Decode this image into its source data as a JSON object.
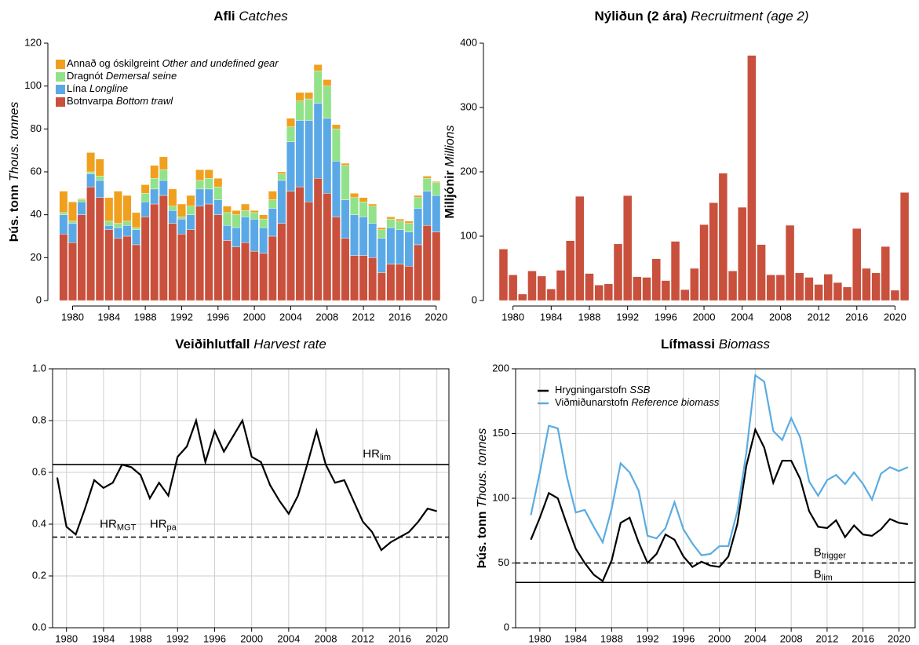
{
  "chart_data": [
    {
      "type": "bar",
      "stacked": true,
      "title": "Afli",
      "title_en": "Catches",
      "ylabel": "Þús. tonn",
      "ylabel_en": "Thous. tonnes",
      "x": [
        1979,
        1980,
        1981,
        1982,
        1983,
        1984,
        1985,
        1986,
        1987,
        1988,
        1989,
        1990,
        1991,
        1992,
        1993,
        1994,
        1995,
        1996,
        1997,
        1998,
        1999,
        2000,
        2001,
        2002,
        2003,
        2004,
        2005,
        2006,
        2007,
        2008,
        2009,
        2010,
        2011,
        2012,
        2013,
        2014,
        2015,
        2016,
        2017,
        2018,
        2019,
        2020
      ],
      "xlim": [
        1977.8,
        2021.4
      ],
      "xticks": [
        1980,
        1984,
        1988,
        1992,
        1996,
        2000,
        2004,
        2008,
        2012,
        2016,
        2020
      ],
      "ylim": [
        0,
        120
      ],
      "yticks": [
        0,
        20,
        40,
        60,
        80,
        100,
        120
      ],
      "grid": false,
      "legend": "top-left",
      "series": [
        {
          "name": "Annað og óskilgreint",
          "name_en": "Other and undefined gear",
          "color": "#f0a01e",
          "values": [
            10,
            9,
            0.5,
            9,
            8,
            11,
            15,
            12,
            7,
            4,
            6,
            6,
            8,
            6,
            5,
            5,
            4,
            4,
            3,
            2,
            3,
            1,
            2,
            4,
            1,
            4,
            4,
            3,
            3,
            3,
            2,
            1,
            2,
            2,
            1,
            1,
            1,
            1,
            1,
            1,
            1,
            0.5
          ]
        },
        {
          "name": "Dragnót",
          "name_en": "Demersal seine",
          "color": "#92e28a",
          "values": [
            1,
            1,
            1,
            1,
            2,
            2,
            2,
            2,
            1,
            4,
            5,
            5,
            2,
            1,
            4,
            4,
            5,
            6,
            6,
            6,
            3,
            3,
            4,
            4,
            3,
            7,
            9,
            10,
            15,
            15,
            15,
            16,
            8,
            7,
            8,
            4,
            4,
            4,
            4,
            5,
            6,
            6
          ]
        },
        {
          "name": "Lína",
          "name_en": "Longline",
          "color": "#5aa9e6",
          "values": [
            9,
            9,
            6,
            6,
            8,
            2,
            5,
            5,
            7,
            7,
            7,
            7,
            6,
            7,
            7,
            8,
            7,
            7,
            7,
            9,
            12,
            15,
            12,
            13,
            20,
            23,
            31,
            38,
            35,
            35,
            26,
            18,
            19,
            18,
            16,
            16,
            17,
            16,
            16,
            17,
            16,
            17
          ]
        },
        {
          "name": "Botnvarpa",
          "name_en": "Bottom trawl",
          "color": "#c9503c",
          "values": [
            31,
            27,
            40,
            53,
            48,
            33,
            29,
            30,
            26,
            39,
            45,
            49,
            36,
            31,
            33,
            44,
            45,
            40,
            28,
            25,
            27,
            23,
            22,
            30,
            36,
            51,
            53,
            46,
            57,
            50,
            39,
            29,
            21,
            21,
            20,
            13,
            17,
            17,
            16,
            26,
            35,
            32
          ]
        }
      ]
    },
    {
      "type": "bar",
      "title": "Nýliðun (2 ára)",
      "title_en": "Recruitment (age 2)",
      "ylabel": "Milljónir",
      "ylabel_en": "Millions",
      "color": "#c9503c",
      "x": [
        1979,
        1980,
        1981,
        1982,
        1983,
        1984,
        1985,
        1986,
        1987,
        1988,
        1989,
        1990,
        1991,
        1992,
        1993,
        1994,
        1995,
        1996,
        1997,
        1998,
        1999,
        2000,
        2001,
        2002,
        2003,
        2004,
        2005,
        2006,
        2007,
        2008,
        2009,
        2010,
        2011,
        2012,
        2013,
        2014,
        2015,
        2016,
        2017,
        2018,
        2019,
        2020,
        2021
      ],
      "values": [
        80,
        40,
        10,
        46,
        38,
        18,
        47,
        93,
        162,
        42,
        24,
        26,
        88,
        163,
        37,
        36,
        65,
        31,
        92,
        17,
        50,
        118,
        152,
        198,
        46,
        145,
        381,
        87,
        40,
        40,
        117,
        43,
        36,
        25,
        41,
        28,
        21,
        112,
        50,
        43,
        84,
        16,
        168
      ],
      "xlim": [
        1977.4,
        2022.1
      ],
      "xticks": [
        1980,
        1984,
        1988,
        1992,
        1996,
        2000,
        2004,
        2008,
        2012,
        2016,
        2020
      ],
      "ylim": [
        0,
        400
      ],
      "yticks": [
        0,
        100,
        200,
        300,
        400
      ],
      "grid": false
    },
    {
      "type": "line",
      "title": "Veiðihlutfall",
      "title_en": "Harvest rate",
      "x": [
        1979,
        1980,
        1981,
        1982,
        1983,
        1984,
        1985,
        1986,
        1987,
        1988,
        1989,
        1990,
        1991,
        1992,
        1993,
        1994,
        1995,
        1996,
        1997,
        1998,
        1999,
        2000,
        2001,
        2002,
        2003,
        2004,
        2005,
        2006,
        2007,
        2008,
        2009,
        2010,
        2011,
        2012,
        2013,
        2014,
        2015,
        2016,
        2017,
        2018,
        2019,
        2020
      ],
      "series": [
        {
          "color": "#000000",
          "values": [
            0.58,
            0.39,
            0.36,
            0.46,
            0.57,
            0.54,
            0.56,
            0.63,
            0.62,
            0.59,
            0.5,
            0.56,
            0.51,
            0.66,
            0.7,
            0.8,
            0.64,
            0.76,
            0.68,
            0.74,
            0.8,
            0.66,
            0.64,
            0.55,
            0.49,
            0.44,
            0.51,
            0.63,
            0.76,
            0.63,
            0.56,
            0.57,
            0.49,
            0.41,
            0.37,
            0.3,
            0.33,
            0.35,
            0.37,
            0.41,
            0.46,
            0.45
          ]
        }
      ],
      "hlines": [
        {
          "value": 0.63,
          "dashed": false,
          "labels": [
            {
              "text": "HR",
              "sub": "lim"
            }
          ]
        },
        {
          "value": 0.35,
          "dashed": true,
          "labels": [
            {
              "text": "HR",
              "sub": "MGT"
            },
            {
              "text": "HR",
              "sub": "pa"
            }
          ]
        }
      ],
      "xlim": [
        1978.5,
        2021.3
      ],
      "xticks": [
        1980,
        1984,
        1988,
        1992,
        1996,
        2000,
        2004,
        2008,
        2012,
        2016,
        2020
      ],
      "ylim": [
        0,
        1
      ],
      "yticks": [
        {
          "value": 0,
          "label": "0.0"
        },
        0.2,
        0.4,
        0.6,
        0.8,
        {
          "value": 1,
          "label": "1.0"
        }
      ],
      "grid": true
    },
    {
      "type": "line",
      "title": "Lífmassi",
      "title_en": "Biomass",
      "ylabel": "Þús. tonn",
      "ylabel_en": "Thous. tonnes",
      "legend": "top-left",
      "x": [
        1979,
        1980,
        1981,
        1982,
        1983,
        1984,
        1985,
        1986,
        1987,
        1988,
        1989,
        1990,
        1991,
        1992,
        1993,
        1994,
        1995,
        1996,
        1997,
        1998,
        1999,
        2000,
        2001,
        2002,
        2003,
        2004,
        2005,
        2006,
        2007,
        2008,
        2009,
        2010,
        2011,
        2012,
        2013,
        2014,
        2015,
        2016,
        2017,
        2018,
        2019,
        2020,
        2021
      ],
      "series": [
        {
          "name": "Hrygningarstofn",
          "name_en": "SSB",
          "color": "#000000",
          "values": [
            68,
            85,
            104,
            100,
            80,
            61,
            50,
            41,
            36,
            52,
            81,
            85,
            66,
            50,
            57,
            72,
            68,
            55,
            47,
            51,
            48,
            47,
            55,
            80,
            125,
            153,
            139,
            112,
            129,
            129,
            115,
            90,
            78,
            77,
            83,
            70,
            79,
            72,
            71,
            76,
            84,
            81,
            80
          ]
        },
        {
          "name": "Viðmiðunarstofn",
          "name_en": "Reference biomass",
          "color": "#5aabe2",
          "values": [
            87,
            120,
            156,
            154,
            117,
            89,
            91,
            78,
            66,
            92,
            127,
            120,
            106,
            71,
            69,
            77,
            97,
            76,
            65,
            56,
            57,
            63,
            63,
            90,
            135,
            195,
            190,
            152,
            145,
            162,
            147,
            113,
            102,
            114,
            118,
            111,
            120,
            111,
            99,
            119,
            124,
            121,
            124
          ]
        }
      ],
      "hlines": [
        {
          "value": 50,
          "dashed": true,
          "labels": [
            {
              "text": "B",
              "sub": "trigger"
            }
          ]
        },
        {
          "value": 35,
          "dashed": false,
          "labels": [
            {
              "text": "B",
              "sub": "lim"
            }
          ]
        }
      ],
      "xlim": [
        1977.3,
        2021.8
      ],
      "xticks": [
        1980,
        1984,
        1988,
        1992,
        1996,
        2000,
        2004,
        2008,
        2012,
        2016,
        2020
      ],
      "ylim": [
        0,
        200
      ],
      "yticks": [
        0,
        50,
        100,
        150,
        200
      ],
      "grid": true
    }
  ]
}
